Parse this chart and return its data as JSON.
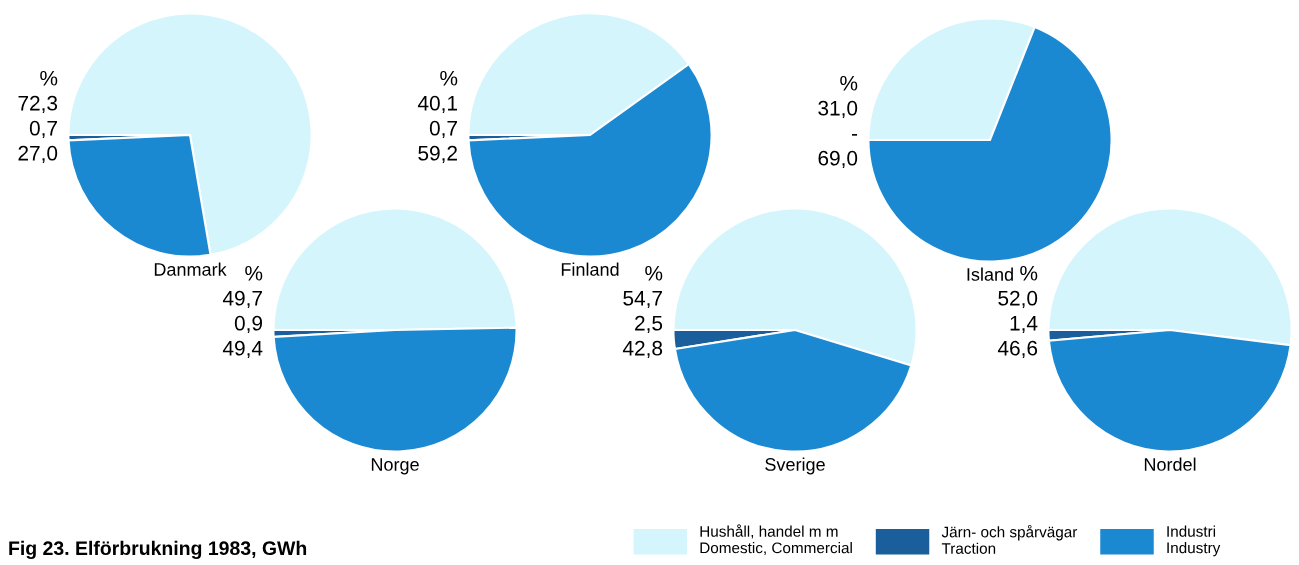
{
  "chart_data": [
    {
      "type": "pie",
      "title": "Danmark",
      "categories": [
        "Hushåll, handel m m\nDomestic, Commercial",
        "Järn- och spårvägar\nTraction",
        "Industri\nIndustry"
      ],
      "values": [
        72.3,
        0.7,
        27.0
      ],
      "value_labels": [
        "72,3",
        "0,7",
        "27,0"
      ],
      "colors": [
        "#d4f5fc",
        "#1b5e9c",
        "#1b88d2"
      ],
      "annotations": [
        "%"
      ],
      "legend": "bottom right"
    },
    {
      "type": "pie",
      "title": "Finland",
      "values": [
        40.1,
        0.7,
        59.2
      ],
      "value_labels": [
        "40,1",
        "0,7",
        "59,2"
      ],
      "colors": [
        "#d4f5fc",
        "#1b5e9c",
        "#1b88d2"
      ],
      "annotations": [
        "%"
      ]
    },
    {
      "type": "pie",
      "title": "Island",
      "values": [
        31.0,
        null,
        69.0
      ],
      "value_labels": [
        "31,0",
        "-",
        "69,0"
      ],
      "colors": [
        "#d4f5fc",
        "#1b5e9c",
        "#1b88d2"
      ],
      "annotations": [
        "%"
      ]
    },
    {
      "type": "pie",
      "title": "Norge",
      "values": [
        49.7,
        0.9,
        49.4
      ],
      "value_labels": [
        "49,7",
        "0,9",
        "49,4"
      ],
      "colors": [
        "#d4f5fc",
        "#1b5e9c",
        "#1b88d2"
      ],
      "annotations": [
        "%"
      ]
    },
    {
      "type": "pie",
      "title": "Sverige",
      "values": [
        54.7,
        2.5,
        42.8
      ],
      "value_labels": [
        "54,7",
        "2,5",
        "42,8"
      ],
      "colors": [
        "#d4f5fc",
        "#1b5e9c",
        "#1b88d2"
      ],
      "annotations": [
        "%"
      ]
    },
    {
      "type": "pie",
      "title": "Nordel",
      "values": [
        52.0,
        1.4,
        46.6
      ],
      "value_labels": [
        "52,0",
        "1,4",
        "46,6"
      ],
      "colors": [
        "#d4f5fc",
        "#1b5e9c",
        "#1b88d2"
      ],
      "annotations": [
        "%",
        "Fig 23. Elförbrukning 1983, GWh"
      ]
    }
  ]
}
